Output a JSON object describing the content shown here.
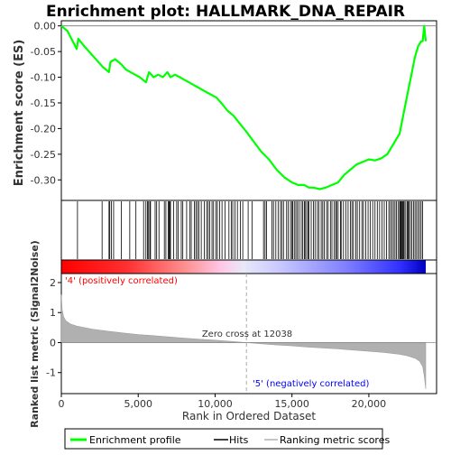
{
  "chart_data": {
    "type": "line",
    "title": "Enrichment plot: HALLMARK_DNA_REPAIR",
    "colors": {
      "es_line": "#00ff00",
      "hits": "#000000",
      "metric_fill": "#b0b0b0",
      "pos_label": "#ff0000",
      "neg_label": "#0000ff",
      "zero_cross_line": "#aaaaaa",
      "heat_pos": "#ff0000",
      "heat_neg": "#0000ff"
    },
    "top_panel": {
      "ylabel": "Enrichment score (ES)",
      "ylim": [
        -0.34,
        0.01
      ],
      "yticks": [
        "0.00",
        "-0.05",
        "-0.10",
        "-0.15",
        "-0.20",
        "-0.25",
        "-0.30"
      ],
      "ytick_values": [
        0.0,
        -0.05,
        -0.1,
        -0.15,
        -0.2,
        -0.25,
        -0.3
      ],
      "series": [
        {
          "name": "Enrichment profile",
          "x": [
            0,
            400,
            1000,
            1100,
            1500,
            2700,
            3100,
            3200,
            3500,
            3900,
            4200,
            4500,
            4800,
            5100,
            5500,
            5700,
            6000,
            6300,
            6600,
            6900,
            7100,
            7400,
            7700,
            8000,
            8300,
            8600,
            8900,
            9200,
            9500,
            9800,
            10100,
            10400,
            10800,
            11200,
            11600,
            12000,
            12500,
            13000,
            13500,
            14000,
            14500,
            15000,
            15400,
            15800,
            16100,
            16400,
            16800,
            17200,
            17600,
            18000,
            18400,
            18800,
            19200,
            19600,
            20000,
            20400,
            20800,
            21200,
            21600,
            22000,
            22200,
            22400,
            22600,
            22800,
            23000,
            23200,
            23400,
            23500,
            23600,
            23700
          ],
          "y": [
            0.0,
            -0.01,
            -0.045,
            -0.025,
            -0.04,
            -0.08,
            -0.09,
            -0.07,
            -0.065,
            -0.075,
            -0.085,
            -0.09,
            -0.095,
            -0.1,
            -0.11,
            -0.09,
            -0.1,
            -0.095,
            -0.1,
            -0.09,
            -0.1,
            -0.095,
            -0.1,
            -0.105,
            -0.11,
            -0.115,
            -0.12,
            -0.125,
            -0.13,
            -0.135,
            -0.14,
            -0.15,
            -0.165,
            -0.175,
            -0.19,
            -0.205,
            -0.225,
            -0.245,
            -0.26,
            -0.28,
            -0.295,
            -0.305,
            -0.31,
            -0.31,
            -0.315,
            -0.315,
            -0.318,
            -0.315,
            -0.31,
            -0.305,
            -0.29,
            -0.28,
            -0.27,
            -0.265,
            -0.26,
            -0.262,
            -0.258,
            -0.25,
            -0.23,
            -0.21,
            -0.18,
            -0.15,
            -0.12,
            -0.09,
            -0.06,
            -0.04,
            -0.03,
            -0.03,
            0.0,
            -0.03
          ]
        }
      ]
    },
    "hits_panel": {
      "hit_ranks": [
        1050,
        2650,
        3100,
        3150,
        3250,
        3400,
        3900,
        4450,
        4850,
        5350,
        5500,
        5600,
        5650,
        5750,
        5800,
        6100,
        6200,
        6350,
        6700,
        6800,
        6950,
        7000,
        7050,
        7100,
        7300,
        7500,
        7600,
        7800,
        7900,
        8150,
        8350,
        8450,
        8650,
        8750,
        8850,
        8950,
        9100,
        9300,
        9450,
        9550,
        9650,
        9800,
        9900,
        10050,
        10150,
        10300,
        10450,
        10650,
        10900,
        11050,
        11150,
        11300,
        11450,
        11650,
        11800,
        12150,
        12400,
        13150,
        13250,
        13350,
        13700,
        13800,
        13950,
        14100,
        14250,
        14350,
        14450,
        14650,
        14750,
        14900,
        15000,
        15050,
        15150,
        15250,
        15350,
        15450,
        15600,
        15700,
        15800,
        15850,
        15950,
        16050,
        16100,
        16250,
        16400,
        16500,
        16650,
        16750,
        16900,
        17000,
        17100,
        17250,
        17350,
        17500,
        17600,
        17750,
        17850,
        17900,
        18000,
        18150,
        18200,
        18350,
        18500,
        18650,
        18800,
        18900,
        19000,
        19150,
        19250,
        19400,
        19550,
        19650,
        19800,
        19950,
        20100,
        20250,
        20400,
        20550,
        20700,
        20850,
        21000,
        21150,
        21300,
        21400,
        21500,
        21600,
        21700,
        21800,
        21900,
        22000,
        22050,
        22100,
        22150,
        22200,
        22250,
        22300,
        22400,
        22500,
        22550,
        22600,
        22700,
        22800,
        22900,
        23000,
        23100,
        23200,
        23300,
        23400,
        23500
      ]
    },
    "heatmap_bar": {
      "pos_label": "'4' (positively correlated)",
      "neg_label": "'5' (negatively correlated)"
    },
    "bottom_panel": {
      "ylabel": "Ranked list metric (Signal2Noise)",
      "xlabel": "Rank in Ordered Dataset",
      "ylim": [
        -1.7,
        2.3
      ],
      "yticks": [
        "2",
        "1",
        "0",
        "-1"
      ],
      "ytick_values": [
        2,
        1,
        0,
        -1
      ],
      "xlim": [
        0,
        23700
      ],
      "xticks": [
        "0",
        "5,000",
        "10,000",
        "15,000",
        "20,000"
      ],
      "xtick_values": [
        0,
        5000,
        10000,
        15000,
        20000
      ],
      "zero_cross_label": "Zero cross at 12038",
      "zero_cross": 12038,
      "metric_x": [
        0,
        50,
        150,
        300,
        600,
        1000,
        2000,
        3000,
        4000,
        5000,
        6000,
        7000,
        8000,
        9000,
        10000,
        11000,
        12038,
        13000,
        14000,
        15000,
        16000,
        17000,
        18000,
        19000,
        20000,
        21000,
        22000,
        22500,
        23000,
        23300,
        23500,
        23600,
        23700
      ],
      "metric_y": [
        1.6,
        1.1,
        0.85,
        0.72,
        0.62,
        0.55,
        0.45,
        0.38,
        0.32,
        0.27,
        0.23,
        0.19,
        0.15,
        0.11,
        0.08,
        0.04,
        0.0,
        -0.04,
        -0.08,
        -0.11,
        -0.15,
        -0.18,
        -0.21,
        -0.25,
        -0.29,
        -0.33,
        -0.39,
        -0.44,
        -0.52,
        -0.62,
        -0.8,
        -1.1,
        -1.55
      ]
    },
    "legend": {
      "items": [
        "Enrichment profile",
        "Hits",
        "Ranking metric scores"
      ]
    }
  }
}
